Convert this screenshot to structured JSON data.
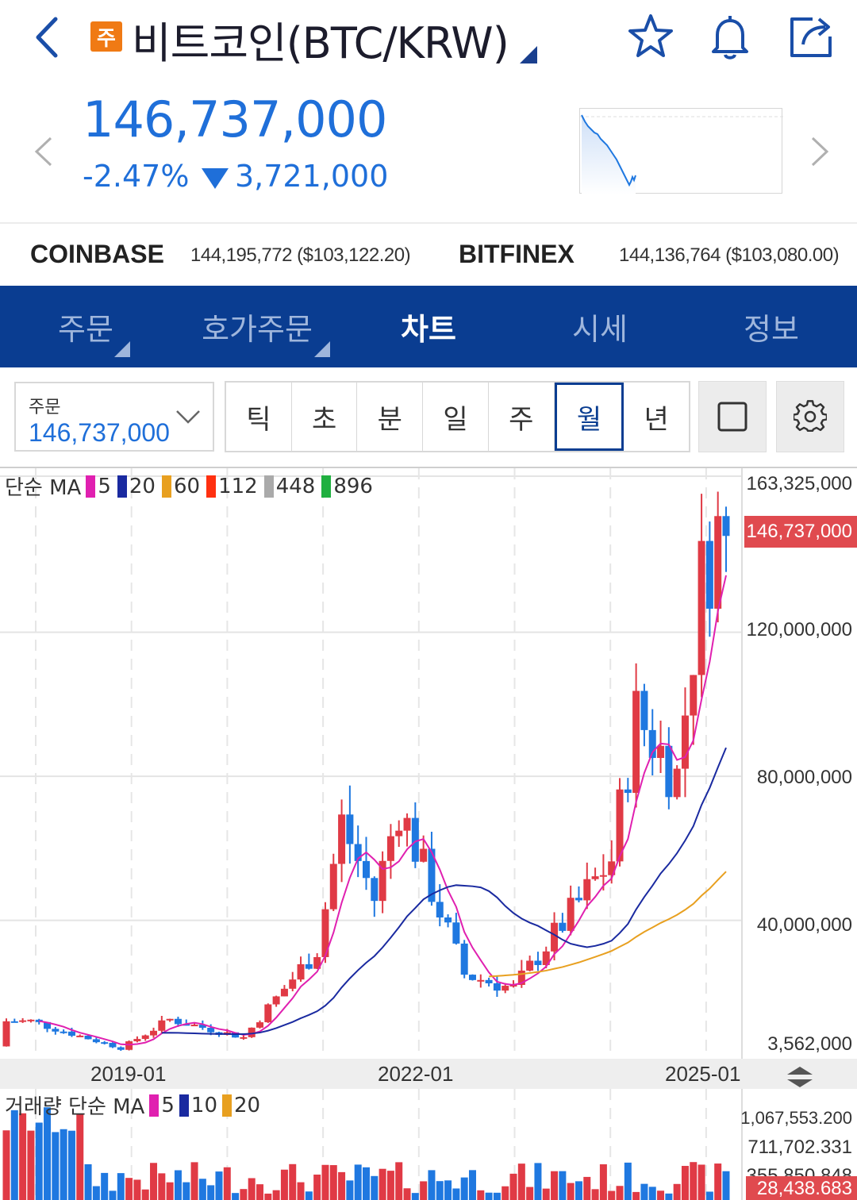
{
  "header": {
    "badge": "주",
    "title": "비트코인(BTC/KRW)",
    "icons": [
      "back-arrow-icon",
      "star-icon",
      "bell-icon",
      "share-icon"
    ]
  },
  "quote": {
    "price": "146,737,000",
    "change_pct": "-2.47%",
    "change_amt": "3,721,000",
    "direction": "down",
    "color": "#1f6fd9"
  },
  "exchanges": [
    {
      "name": "COINBASE",
      "value": "144,195,772 ($103,122.20)"
    },
    {
      "name": "BITFINEX",
      "value": "144,136,764 ($103,080.00)"
    }
  ],
  "tabs": [
    {
      "label": "주문",
      "active": false,
      "dropdown": true
    },
    {
      "label": "호가주문",
      "active": false,
      "dropdown": true
    },
    {
      "label": "차트",
      "active": true,
      "dropdown": false
    },
    {
      "label": "시세",
      "active": false,
      "dropdown": false
    },
    {
      "label": "정보",
      "active": false,
      "dropdown": false
    }
  ],
  "order_box": {
    "label": "주문",
    "value": "146,737,000"
  },
  "periods": [
    {
      "label": "틱",
      "active": false
    },
    {
      "label": "초",
      "active": false
    },
    {
      "label": "분",
      "active": false
    },
    {
      "label": "일",
      "active": false
    },
    {
      "label": "주",
      "active": false
    },
    {
      "label": "월",
      "active": true
    },
    {
      "label": "년",
      "active": false
    }
  ],
  "price_legend": {
    "prefix": "단순 MA",
    "items": [
      {
        "label": "5",
        "color": "#e020b0"
      },
      {
        "label": "20",
        "color": "#1a2aa0"
      },
      {
        "label": "60",
        "color": "#e8a020"
      },
      {
        "label": "112",
        "color": "#ff3010"
      },
      {
        "label": "448",
        "color": "#aaaaaa"
      },
      {
        "label": "896",
        "color": "#20b040"
      }
    ]
  },
  "y_axis": {
    "labels": [
      "163,325,000",
      "120,000,000",
      "80,000,000",
      "40,000,000",
      "3,562,000"
    ],
    "current": "146,737,000"
  },
  "x_axis": {
    "labels": [
      "2019-01",
      "2022-01",
      "2025-01"
    ]
  },
  "volume": {
    "prefix": "거래량 단순 MA",
    "items": [
      {
        "label": "5",
        "color": "#e020b0"
      },
      {
        "label": "10",
        "color": "#1a2aa0"
      },
      {
        "label": "20",
        "color": "#e8a020"
      }
    ],
    "axis_labels": [
      "1,067,553.200",
      "711,702.331",
      "355,850.848"
    ],
    "current": "28,438.683"
  },
  "chart_data": {
    "type": "candlestick",
    "interval": "monthly",
    "x_range": [
      "2017-10",
      "2025-02"
    ],
    "ylim": [
      3562000,
      163325000
    ],
    "approx_close_path": [
      {
        "x": "2018-01",
        "y": 12000000
      },
      {
        "x": "2018-12",
        "y": 4500000
      },
      {
        "x": "2019-06",
        "y": 12500000
      },
      {
        "x": "2020-03",
        "y": 7500000
      },
      {
        "x": "2020-12",
        "y": 32000000
      },
      {
        "x": "2021-03",
        "y": 67000000
      },
      {
        "x": "2021-07",
        "y": 46000000
      },
      {
        "x": "2021-10",
        "y": 72000000
      },
      {
        "x": "2022-06",
        "y": 25000000
      },
      {
        "x": "2022-12",
        "y": 21000000
      },
      {
        "x": "2023-12",
        "y": 57000000
      },
      {
        "x": "2024-03",
        "y": 97000000
      },
      {
        "x": "2024-08",
        "y": 80000000
      },
      {
        "x": "2024-11",
        "y": 135000000
      },
      {
        "x": "2025-01",
        "y": 148000000
      },
      {
        "x": "2025-02",
        "y": 146737000
      }
    ],
    "colors": {
      "up": "#e03a45",
      "down": "#1f78e0"
    }
  }
}
